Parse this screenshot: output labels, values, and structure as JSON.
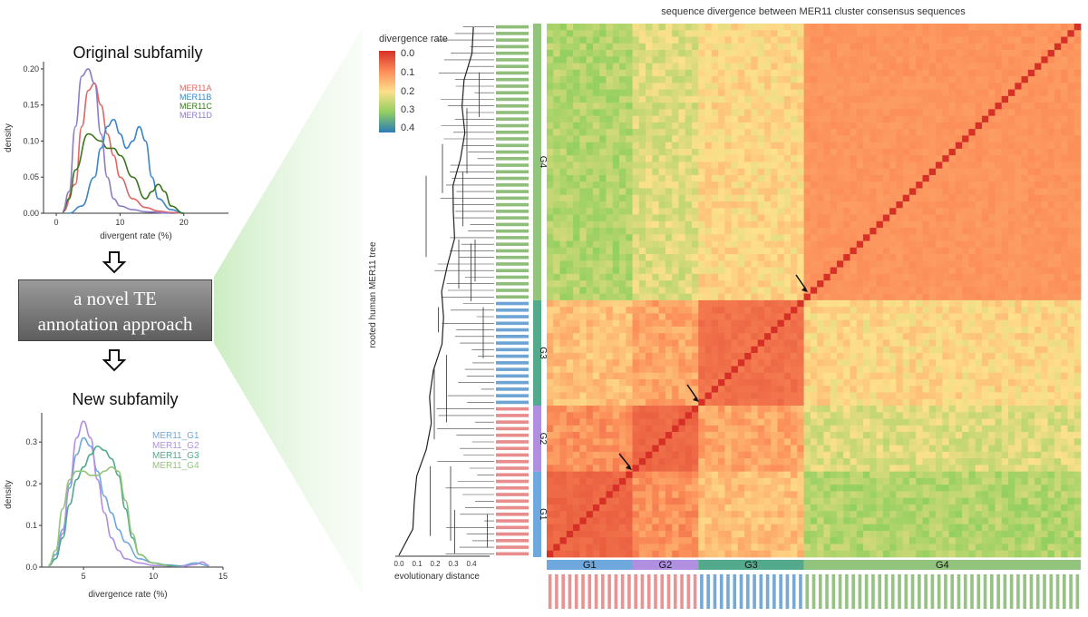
{
  "top_panel": {
    "title": "Original subfamily",
    "xlabel": "divergent rate (%)",
    "ylabel": "density",
    "xticks": [
      "0",
      "10",
      "20"
    ],
    "yticks": [
      "0.00",
      "0.05",
      "0.10",
      "0.15",
      "0.20"
    ]
  },
  "bottom_panel": {
    "title": "New subfamily",
    "xlabel": "divergence rate (%)",
    "ylabel": "density",
    "xticks": [
      "5",
      "10",
      "15"
    ],
    "yticks": [
      "0.0",
      "0.1",
      "0.2",
      "0.3"
    ]
  },
  "method_box": {
    "line1": "a novel TE",
    "line2": "annotation approach"
  },
  "heatmap": {
    "title": "sequence divergence between MER11 cluster consensus sequences",
    "legend_title": "divergence rate",
    "legend_ticks": [
      "0.0",
      "0.1",
      "0.2",
      "0.3",
      "0.4"
    ],
    "tree_ylabel": "rooted human MER11 tree",
    "tree_xlabel": "evolutionary distance",
    "tree_xticks": [
      "0.0",
      "0.1",
      "0.2",
      "0.3",
      "0.4"
    ],
    "group_labels": [
      "G1",
      "G2",
      "G3",
      "G4"
    ]
  },
  "colors": {
    "MER11A": "#e06666",
    "MER11B": "#3d85c6",
    "MER11C": "#38761d",
    "MER11D": "#8e7cc3",
    "G1": "#6fa8dc",
    "G2": "#b08fe0",
    "G3": "#52a98c",
    "G4": "#93c47d"
  },
  "chart_data": [
    {
      "type": "line",
      "title": "Original subfamily",
      "xlabel": "divergent rate (%)",
      "ylabel": "density",
      "xlim": [
        -2,
        27
      ],
      "ylim": [
        0,
        0.21
      ],
      "series": [
        {
          "name": "MER11A",
          "x": [
            1,
            3,
            4,
            5,
            6,
            7,
            8,
            9,
            10,
            12,
            14,
            16,
            18,
            20
          ],
          "y": [
            0.002,
            0.04,
            0.12,
            0.17,
            0.18,
            0.15,
            0.11,
            0.08,
            0.05,
            0.02,
            0.008,
            0.003,
            0.001,
            0
          ]
        },
        {
          "name": "MER11B",
          "x": [
            2,
            4,
            6,
            7,
            8,
            9,
            10,
            11,
            12,
            13,
            14,
            15,
            16,
            18,
            20
          ],
          "y": [
            0,
            0.01,
            0.05,
            0.09,
            0.12,
            0.13,
            0.11,
            0.09,
            0.1,
            0.12,
            0.1,
            0.05,
            0.02,
            0.005,
            0
          ]
        },
        {
          "name": "MER11C",
          "x": [
            1,
            2,
            3,
            5,
            7,
            8,
            9,
            10,
            12,
            14,
            15,
            16,
            17,
            18,
            20
          ],
          "y": [
            0.002,
            0.02,
            0.06,
            0.11,
            0.1,
            0.09,
            0.09,
            0.08,
            0.05,
            0.02,
            0.03,
            0.04,
            0.03,
            0.01,
            0
          ]
        },
        {
          "name": "MER11D",
          "x": [
            1,
            2,
            3,
            4,
            5,
            6,
            7,
            8,
            9,
            10,
            12,
            14,
            18
          ],
          "y": [
            0.003,
            0.03,
            0.12,
            0.19,
            0.2,
            0.18,
            0.11,
            0.05,
            0.02,
            0.01,
            0.005,
            0.002,
            0
          ]
        }
      ]
    },
    {
      "type": "line",
      "title": "New subfamily",
      "xlabel": "divergence rate (%)",
      "ylabel": "density",
      "xlim": [
        2,
        15
      ],
      "ylim": [
        0,
        0.37
      ],
      "series": [
        {
          "name": "MER11_G1",
          "x": [
            2.5,
            3,
            3.5,
            4,
            4.5,
            5,
            5.5,
            6,
            6.5,
            7,
            7.5,
            8,
            9,
            10,
            11,
            12,
            13,
            14
          ],
          "y": [
            0.005,
            0.03,
            0.09,
            0.19,
            0.27,
            0.31,
            0.29,
            0.23,
            0.17,
            0.13,
            0.09,
            0.06,
            0.02,
            0.01,
            0.005,
            0.003,
            0.01,
            0.003
          ]
        },
        {
          "name": "MER11_G2",
          "x": [
            2.5,
            3,
            3.5,
            4,
            4.5,
            5,
            5.5,
            6,
            6.5,
            7,
            7.5,
            8,
            9,
            10,
            12,
            13,
            13.5,
            14
          ],
          "y": [
            0.004,
            0.02,
            0.08,
            0.2,
            0.31,
            0.35,
            0.31,
            0.21,
            0.13,
            0.07,
            0.04,
            0.02,
            0.01,
            0.004,
            0.002,
            0.006,
            0.012,
            0.004
          ]
        },
        {
          "name": "MER11_G3",
          "x": [
            2.5,
            3,
            3.5,
            4,
            4.5,
            5,
            5.5,
            6,
            6.5,
            7,
            7.5,
            8,
            8.5,
            9,
            10,
            11,
            12
          ],
          "y": [
            0.003,
            0.02,
            0.07,
            0.15,
            0.21,
            0.24,
            0.27,
            0.29,
            0.28,
            0.26,
            0.22,
            0.14,
            0.07,
            0.03,
            0.01,
            0.004,
            0.002
          ]
        },
        {
          "name": "MER11_G4",
          "x": [
            2.5,
            3,
            3.5,
            4,
            4.5,
            5,
            5.5,
            6,
            6.5,
            7,
            7.5,
            8,
            8.5,
            9,
            10,
            11
          ],
          "y": [
            0.003,
            0.04,
            0.14,
            0.21,
            0.23,
            0.23,
            0.22,
            0.22,
            0.23,
            0.24,
            0.23,
            0.16,
            0.08,
            0.03,
            0.01,
            0.003
          ]
        }
      ]
    },
    {
      "type": "heatmap",
      "title": "sequence divergence between MER11 cluster consensus sequences",
      "value_label": "divergence rate",
      "color_range": [
        0.0,
        0.4
      ],
      "groups": [
        {
          "name": "G1",
          "size": 13
        },
        {
          "name": "G2",
          "size": 10
        },
        {
          "name": "G3",
          "size": 16
        },
        {
          "name": "G4",
          "size": 42
        }
      ],
      "within_group_divergence": [
        0.05,
        0.05,
        0.06,
        0.1
      ],
      "between_group_divergence": {
        "G1-G2": 0.11,
        "G1-G3": 0.16,
        "G1-G4": 0.27,
        "G2-G3": 0.13,
        "G2-G4": 0.23,
        "G3-G4": 0.19
      }
    }
  ]
}
